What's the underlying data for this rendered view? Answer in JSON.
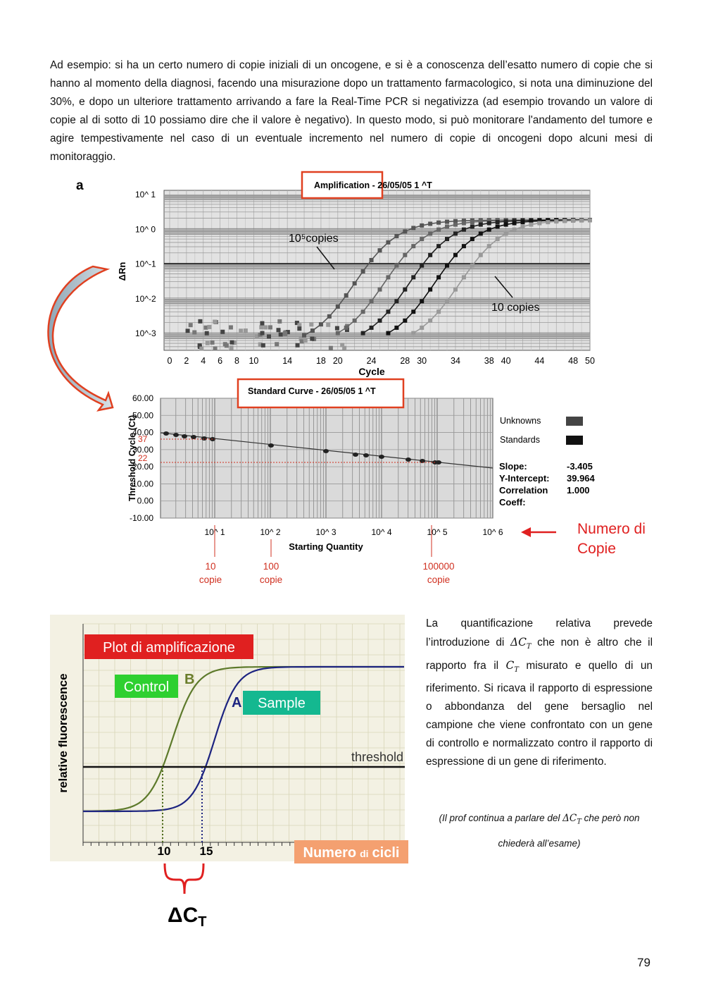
{
  "paragraph": "Ad esempio: si ha un certo numero di copie iniziali di un oncogene, e si è a conoscenza dell’esatto numero di copie che si hanno al momento della diagnosi, facendo una misurazione dopo un trattamento farmacologico, si nota una diminuzione del 30%, e dopo un ulteriore trattamento arrivando a fare la Real-Time PCR si negativizza (ad esempio trovando un valore di copie al di sotto di 10 possiamo dire che il valore è negativo). In questo modo, si può monitorare l'andamento del tumore e agire tempestivamente nel caso di un eventuale incremento nel numero di copie di oncogeni dopo alcuni mesi di monitoraggio.",
  "figure_a": {
    "label": "a",
    "amplification": {
      "title": "Amplification - 26/05/05 1 ^T",
      "y_axis_label": "ΔRn",
      "yticks": [
        "10^ 1",
        "10^ 0",
        "10^-1",
        "10^-2",
        "10^-3"
      ],
      "x_axis_label": "Cycle",
      "xticks": [
        0,
        2,
        4,
        6,
        8,
        10,
        14,
        18,
        20,
        24,
        28,
        30,
        34,
        38,
        40,
        44,
        48,
        50
      ],
      "annotations": [
        "10⁵copies",
        "10 copies"
      ]
    },
    "standard_curve": {
      "title": "Standard Curve - 26/05/05 1 ^T",
      "y_axis_label": "Threshold Cycle (Ct)",
      "yticks": [
        "60.00",
        "50.00",
        "40.00",
        "30.00",
        "20.00",
        "10.00",
        "0.00",
        "-10.00"
      ],
      "x_axis_label": "Starting Quantity",
      "xticks": [
        "10^ 1",
        "10^ 2",
        "10^ 3",
        "10^ 4",
        "10^ 5",
        "10^ 6"
      ],
      "marked_ct": [
        "37",
        "22"
      ],
      "legend": [
        "Unknowns",
        "Standards"
      ],
      "stats": [
        {
          "label": "Slope:",
          "value": "-3.405"
        },
        {
          "label": "Y-Intercept:",
          "value": "39.964"
        },
        {
          "label": "Correlation",
          "value": "1.000"
        },
        {
          "label": "Coeff:",
          "value": ""
        }
      ],
      "arrow_label": [
        "Numero di",
        "Copie"
      ],
      "copies": [
        {
          "number": "10",
          "unit": "copie"
        },
        {
          "number": "100",
          "unit": "copie"
        },
        {
          "number": "100000",
          "unit": "copie"
        }
      ]
    }
  },
  "figure_b": {
    "title": "Plot di amplificazione",
    "control": "Control",
    "control_letter": "B",
    "sample": "Sample",
    "sample_letter": "A",
    "threshold": "threshold",
    "y_axis_label": "relative fluorescence",
    "xticks": [
      "10",
      "15"
    ],
    "x_axis_label": [
      "Numero",
      "di",
      "cicli"
    ],
    "delta": [
      "ΔC",
      "T"
    ]
  },
  "side_text": [
    "La quantificazione relativa prevede l’introduzione di ",
    "ΔC",
    "T",
    " che non è altro che il rapporto fra il ",
    "C",
    "T",
    " misurato e quello di un riferimento. Si ricava il rapporto di espressione o abbondanza del gene bersaglio nel campione che viene confrontato con un gene di controllo e normalizzato contro il rapporto di espressione di un gene di riferimento."
  ],
  "note": [
    "(Il prof continua a parlare del ",
    "ΔC",
    "T",
    " che però non chiederà all’esame)"
  ],
  "page_number": "79"
}
